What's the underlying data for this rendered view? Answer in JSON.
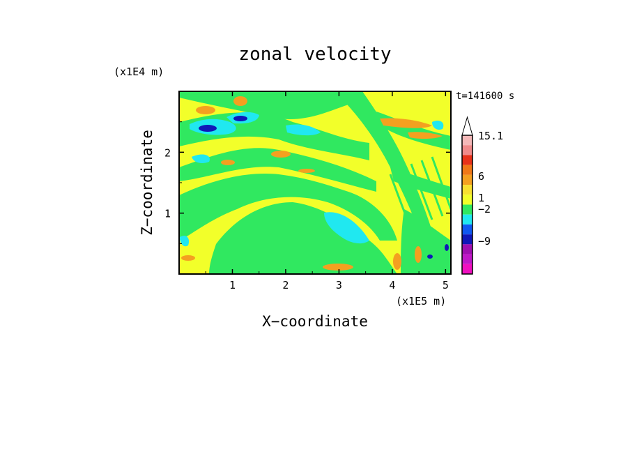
{
  "chart_data": {
    "type": "heatmap",
    "title": "zonal velocity",
    "xlabel": "X−coordinate",
    "ylabel": "Z−coordinate",
    "x_unit": "(x1E5 m)",
    "y_unit": "(x1E4 m)",
    "time_label": "t=141600 s",
    "xlim": [
      0,
      5.1
    ],
    "ylim": [
      0,
      3.0
    ],
    "x_ticks": [
      "1",
      "2",
      "3",
      "4",
      "5"
    ],
    "y_ticks": [
      "1",
      "2"
    ],
    "grid": false,
    "colorbar": {
      "labels": [
        "15.1",
        "6",
        "1",
        "−2",
        "−9"
      ],
      "levels_top_to_bottom": [
        {
          "color": "#f4b8b8"
        },
        {
          "color": "#f08a8a"
        },
        {
          "color": "#e8321a"
        },
        {
          "color": "#f07818"
        },
        {
          "color": "#f4a020"
        },
        {
          "color": "#f8e030"
        },
        {
          "color": "#f2ff2a"
        },
        {
          "color": "#30e860"
        },
        {
          "color": "#20e8f0"
        },
        {
          "color": "#1058f0"
        },
        {
          "color": "#1018b8"
        },
        {
          "color": "#a010b0"
        },
        {
          "color": "#c018c8"
        },
        {
          "color": "#f010c0"
        }
      ]
    },
    "field_colors": {
      "background": "#f2ff2a",
      "positive_weak": "#f4a020",
      "negative_weak": "#30e860",
      "negative_mid": "#20e8f0",
      "negative_strong": "#1018b8"
    }
  }
}
